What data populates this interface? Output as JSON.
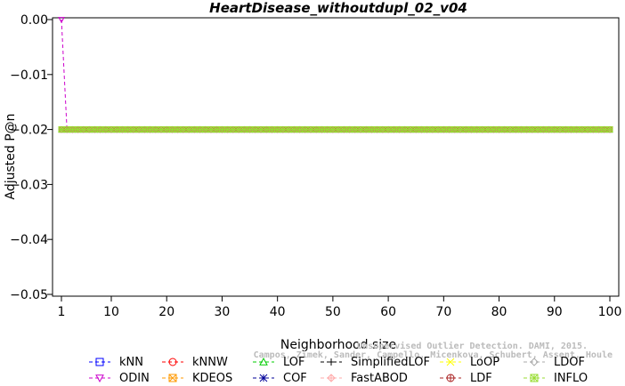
{
  "chart_data": {
    "type": "line",
    "title": "HeartDisease_withoutdupl_02_v04",
    "xlabel": "Neighborhood size",
    "ylabel": "Adjusted P@n",
    "xlim": [
      1,
      100
    ],
    "ylim": [
      -0.05,
      0.0
    ],
    "x_ticks": [
      1,
      10,
      20,
      30,
      40,
      50,
      60,
      70,
      80,
      90,
      100
    ],
    "y_ticks": [
      0.0,
      -0.01,
      -0.02,
      -0.03,
      -0.04,
      -0.05
    ],
    "y_tick_labels": [
      "0.00",
      "−0.01",
      "−0.02",
      "−0.03",
      "−0.04",
      "−0.05"
    ],
    "grid": false,
    "legend_position": "bottom",
    "x_range": [
      1,
      100
    ],
    "series": [
      {
        "name": "kNN",
        "color": "#0000ff",
        "marker": "square",
        "constant": -0.02
      },
      {
        "name": "kNNW",
        "color": "#ff0000",
        "marker": "circle",
        "constant": -0.02
      },
      {
        "name": "LOF",
        "color": "#00cc00",
        "marker": "triangle-up",
        "constant": -0.02
      },
      {
        "name": "SimplifiedLOF",
        "color": "#000000",
        "marker": "plus",
        "constant": -0.02
      },
      {
        "name": "LoOP",
        "color": "#ffff00",
        "marker": "x",
        "constant": -0.02
      },
      {
        "name": "LDOF",
        "color": "#aaaaaa",
        "marker": "diamond",
        "constant": -0.02
      },
      {
        "name": "ODIN",
        "color": "#cc00cc",
        "marker": "triangle-down",
        "constant": -0.02,
        "points": [
          [
            1,
            0.0
          ],
          [
            2,
            -0.02
          ]
        ]
      },
      {
        "name": "KDEOS",
        "color": "#ff9900",
        "marker": "square-x",
        "constant": -0.02
      },
      {
        "name": "COF",
        "color": "#000099",
        "marker": "asterisk",
        "constant": -0.02
      },
      {
        "name": "FastABOD",
        "color": "#ffaaaa",
        "marker": "diamond-plus",
        "constant": -0.02
      },
      {
        "name": "LDF",
        "color": "#aa2222",
        "marker": "circle-plus",
        "constant": -0.02
      },
      {
        "name": "INFLO",
        "color": "#99dd33",
        "marker": "square-star",
        "constant": -0.02
      }
    ]
  },
  "watermark": {
    "line1": "Unsupervised Outlier Detection. DAMI, 2015.",
    "line2": "Campos, Zimek, Sander, Campello, Micenkova, Schubert, Assent, Houle"
  }
}
